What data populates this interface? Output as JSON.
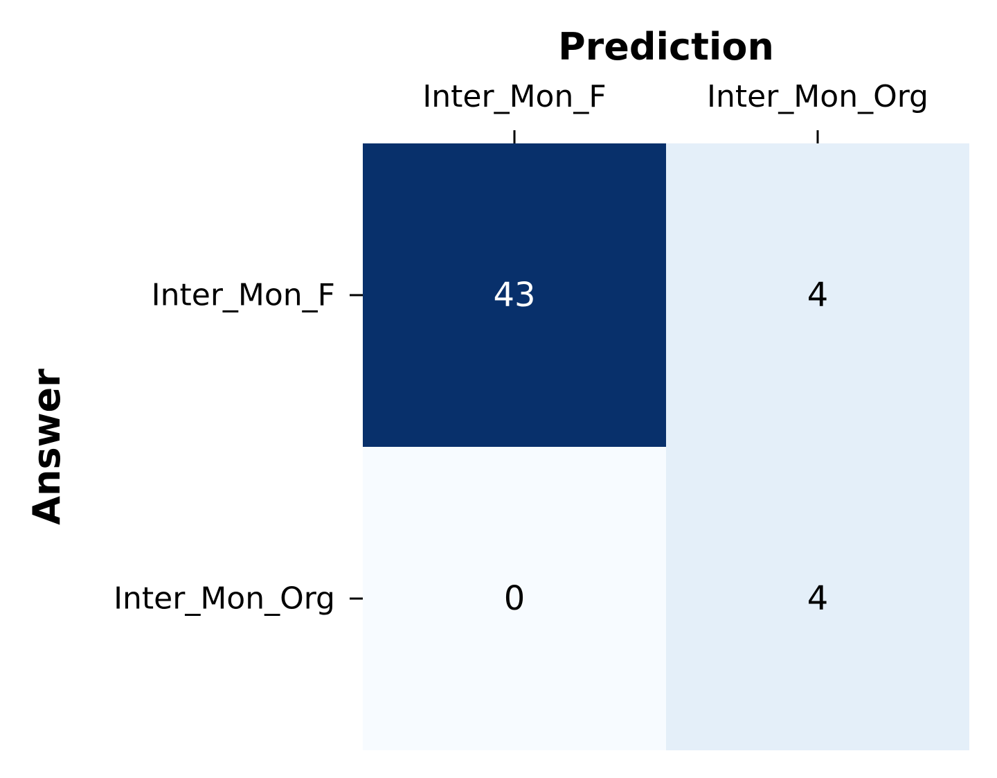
{
  "chart_data": {
    "type": "heatmap",
    "title": "",
    "xlabel": "Prediction",
    "ylabel": "Answer",
    "x_categories": [
      "Inter_Mon_F",
      "Inter_Mon_Org"
    ],
    "y_categories": [
      "Inter_Mon_F",
      "Inter_Mon_Org"
    ],
    "values": [
      [
        43,
        4
      ],
      [
        0,
        4
      ]
    ],
    "x_axis_position": "top",
    "colormap": "Blues",
    "value_range": [
      0,
      43
    ],
    "grid": false,
    "colorbar": false,
    "colors": {
      "low": "#f7fbff",
      "high": "#08306b",
      "text_dark": "#000000",
      "text_light": "#ffffff"
    }
  }
}
